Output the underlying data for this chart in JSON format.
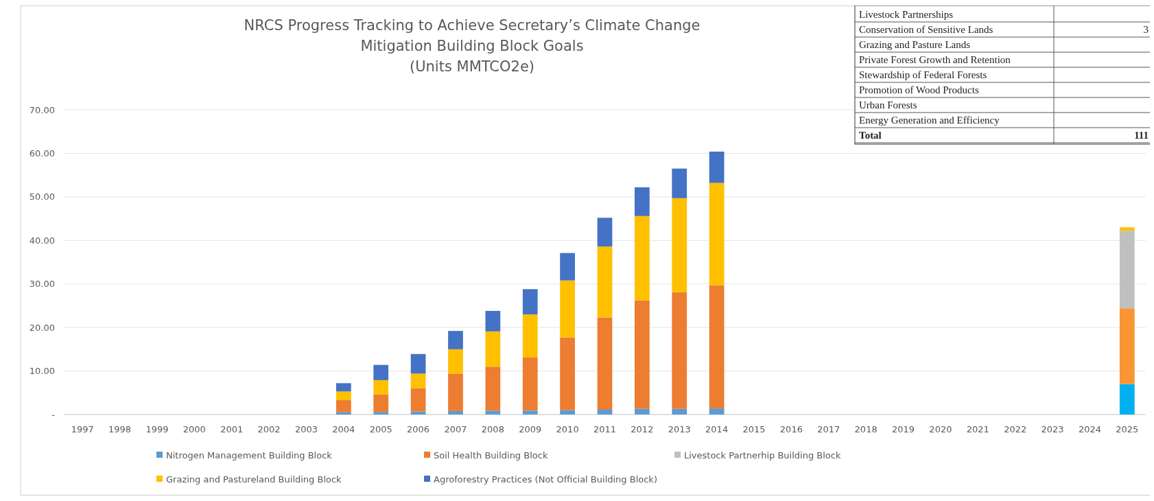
{
  "chart_data": [
    {
      "type": "bar",
      "title": "NRCS Progress Tracking to Achieve Secretary’s Climate Change\nMitigation Building Block Goals\n(Units MMTCO2e)",
      "categories": [
        "1997",
        "1998",
        "1999",
        "2000",
        "2001",
        "2002",
        "2003",
        "2004",
        "2005",
        "2006",
        "2007",
        "2008",
        "2009",
        "2010",
        "2011",
        "2012",
        "2013",
        "2014",
        "2015",
        "2016",
        "2017",
        "2018",
        "2019",
        "2020",
        "2021",
        "2022",
        "2023",
        "2024",
        "2025"
      ],
      "stacked": true,
      "series": [
        {
          "name": "Nitrogen Management Building Block",
          "color": "#5b9bd5",
          "colors": [
            null,
            null,
            null,
            null,
            null,
            null,
            null,
            "#5b9bd5",
            "#5b9bd5",
            "#5b9bd5",
            "#5b9bd5",
            "#5b9bd5",
            "#5b9bd5",
            "#5b9bd5",
            "#5b9bd5",
            "#5b9bd5",
            "#5b9bd5",
            "#5b9bd5",
            null,
            null,
            null,
            null,
            null,
            null,
            null,
            null,
            null,
            null,
            "#00b0f0"
          ],
          "values": [
            null,
            null,
            null,
            null,
            null,
            null,
            null,
            0.5,
            0.6,
            0.7,
            0.8,
            0.9,
            0.9,
            1.0,
            1.1,
            1.3,
            1.3,
            1.4,
            null,
            null,
            null,
            null,
            null,
            null,
            null,
            null,
            null,
            null,
            7.0
          ]
        },
        {
          "name": "Soil Health Building Block",
          "color": "#ed7d31",
          "colors": [
            null,
            null,
            null,
            null,
            null,
            null,
            null,
            "#ed7d31",
            "#ed7d31",
            "#ed7d31",
            "#ed7d31",
            "#ed7d31",
            "#ed7d31",
            "#ed7d31",
            "#ed7d31",
            "#ed7d31",
            "#ed7d31",
            "#ed7d31",
            null,
            null,
            null,
            null,
            null,
            null,
            null,
            null,
            null,
            null,
            "#f79632"
          ],
          "values": [
            null,
            null,
            null,
            null,
            null,
            null,
            null,
            2.8,
            4.0,
            5.3,
            8.6,
            10.1,
            12.2,
            16.7,
            21.2,
            24.9,
            26.8,
            28.3,
            null,
            null,
            null,
            null,
            null,
            null,
            null,
            null,
            null,
            null,
            17.4
          ]
        },
        {
          "name": "Livestock Partnerhip Building Block",
          "color": "#c0c0c0",
          "values": [
            null,
            null,
            null,
            null,
            null,
            null,
            null,
            null,
            null,
            null,
            null,
            null,
            null,
            null,
            null,
            null,
            null,
            null,
            null,
            null,
            null,
            null,
            null,
            null,
            null,
            null,
            null,
            null,
            17.8
          ]
        },
        {
          "name": "Grazing and Pastureland Building Block",
          "color": "#ffc000",
          "values": [
            null,
            null,
            null,
            null,
            null,
            null,
            null,
            2.0,
            3.3,
            3.4,
            5.6,
            8.1,
            9.9,
            13.1,
            16.3,
            19.4,
            21.6,
            23.5,
            null,
            null,
            null,
            null,
            null,
            null,
            null,
            null,
            null,
            null,
            0.8
          ]
        },
        {
          "name": "Agroforestry Practices (Not Official Building Block)",
          "color": "#4472c4",
          "values": [
            null,
            null,
            null,
            null,
            null,
            null,
            null,
            1.9,
            3.5,
            4.5,
            4.2,
            4.7,
            5.8,
            6.3,
            6.6,
            6.6,
            6.8,
            7.2,
            null,
            null,
            null,
            null,
            null,
            null,
            null,
            null,
            null,
            null,
            null
          ]
        }
      ],
      "ylim": [
        0,
        70
      ],
      "yticks": [
        {
          "value": 0,
          "label": "-"
        },
        {
          "value": 10,
          "label": "10.00"
        },
        {
          "value": 20,
          "label": "20.00"
        },
        {
          "value": 30,
          "label": "30.00"
        },
        {
          "value": 40,
          "label": "40.00"
        },
        {
          "value": 50,
          "label": "50.00"
        },
        {
          "value": 60,
          "label": "60.00"
        },
        {
          "value": 70,
          "label": "70.00"
        }
      ],
      "grid": "y",
      "legend": "bottom"
    },
    {
      "type": "other",
      "categories": [
        "Livestock Partnerships",
        "Conservation of Sensitive Lands",
        "Grazing and Pasture Lands",
        "Private Forest Growth and Retention",
        "Stewardship of Federal Forests",
        "Promotion of Wood Products",
        "Urban Forests",
        "Energy Generation and Efficiency",
        "Total"
      ],
      "value_labels": [
        null,
        "3",
        null,
        null,
        null,
        null,
        null,
        null,
        "111"
      ]
    }
  ]
}
